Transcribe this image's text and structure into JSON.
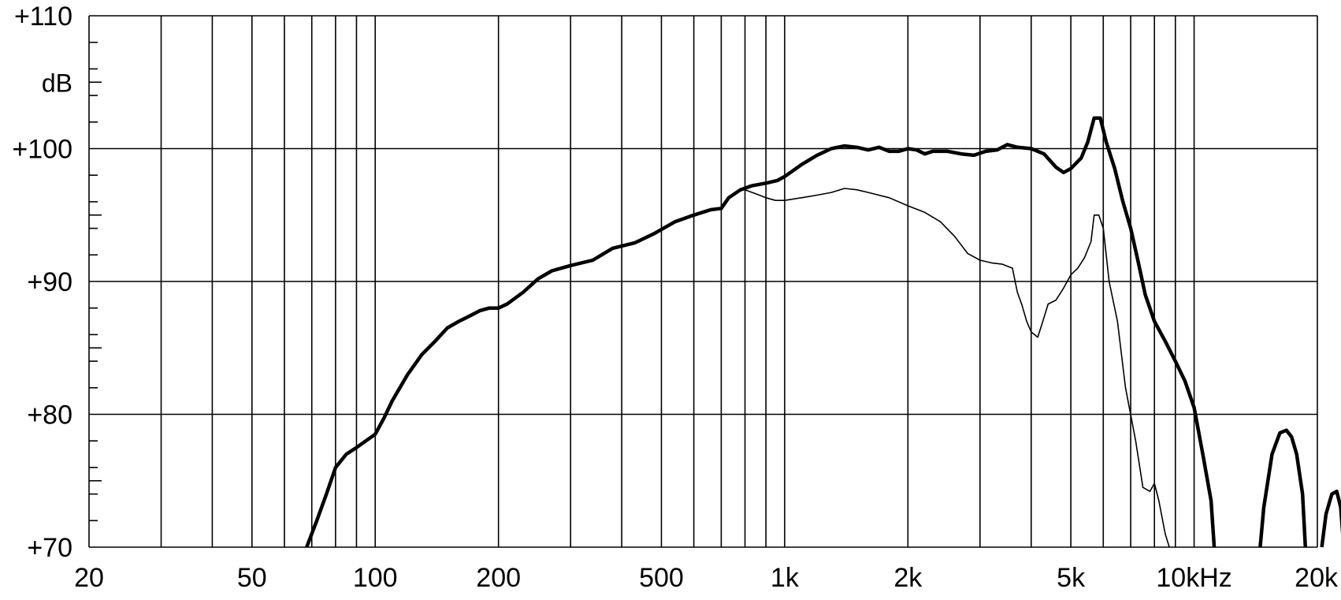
{
  "chart_data": {
    "type": "line",
    "title": "",
    "xlabel": "",
    "ylabel": "dB",
    "x_scale": "log",
    "xlim": [
      20,
      20000
    ],
    "ylim": [
      70,
      110
    ],
    "grid": true,
    "x_ticks": [
      {
        "value": 20,
        "label": "20"
      },
      {
        "value": 50,
        "label": "50"
      },
      {
        "value": 100,
        "label": "100"
      },
      {
        "value": 200,
        "label": "200"
      },
      {
        "value": 500,
        "label": "500"
      },
      {
        "value": 1000,
        "label": "1k"
      },
      {
        "value": 2000,
        "label": "2k"
      },
      {
        "value": 5000,
        "label": "5k"
      },
      {
        "value": 10000,
        "label": "10kHz"
      },
      {
        "value": 20000,
        "label": "20k"
      }
    ],
    "y_ticks": [
      {
        "value": 110,
        "label": "+110"
      },
      {
        "value": 100,
        "label": "+100"
      },
      {
        "value": 90,
        "label": "+90"
      },
      {
        "value": 80,
        "label": "+80"
      },
      {
        "value": 70,
        "label": "+70"
      }
    ],
    "y_unit_label": "dB",
    "y_unit_label_value": 105,
    "series": [
      {
        "style": "thick",
        "color": "#000000",
        "segments": [
          [
            [
              68,
              70
            ],
            [
              72,
              72
            ],
            [
              76,
              74
            ],
            [
              80,
              76
            ],
            [
              85,
              77
            ],
            [
              90,
              77.5
            ],
            [
              100,
              78.5
            ],
            [
              105,
              79.7
            ],
            [
              110,
              81
            ],
            [
              120,
              83
            ],
            [
              130,
              84.5
            ],
            [
              140,
              85.5
            ],
            [
              150,
              86.5
            ],
            [
              160,
              87
            ],
            [
              170,
              87.4
            ],
            [
              180,
              87.8
            ],
            [
              190,
              88
            ],
            [
              200,
              88
            ],
            [
              210,
              88.3
            ],
            [
              230,
              89.2
            ],
            [
              250,
              90.2
            ],
            [
              270,
              90.8
            ],
            [
              300,
              91.2
            ],
            [
              340,
              91.6
            ],
            [
              380,
              92.5
            ],
            [
              430,
              92.9
            ],
            [
              480,
              93.6
            ],
            [
              540,
              94.5
            ],
            [
              600,
              95
            ],
            [
              660,
              95.4
            ],
            [
              700,
              95.5
            ],
            [
              730,
              96.3
            ],
            [
              780,
              96.9
            ],
            [
              830,
              97.2
            ],
            [
              900,
              97.4
            ],
            [
              960,
              97.6
            ],
            [
              1000,
              97.9
            ],
            [
              1100,
              98.8
            ],
            [
              1200,
              99.5
            ],
            [
              1300,
              100
            ],
            [
              1400,
              100.2
            ],
            [
              1500,
              100.1
            ],
            [
              1600,
              99.9
            ],
            [
              1700,
              100.1
            ],
            [
              1800,
              99.8
            ],
            [
              1900,
              99.8
            ],
            [
              2000,
              100
            ],
            [
              2100,
              99.9
            ],
            [
              2200,
              99.6
            ],
            [
              2300,
              99.8
            ],
            [
              2500,
              99.8
            ],
            [
              2700,
              99.6
            ],
            [
              2900,
              99.5
            ],
            [
              3100,
              99.8
            ],
            [
              3300,
              99.9
            ],
            [
              3500,
              100.3
            ],
            [
              3700,
              100.1
            ],
            [
              4000,
              100
            ],
            [
              4300,
              99.6
            ],
            [
              4600,
              98.6
            ],
            [
              4800,
              98.2
            ],
            [
              5000,
              98.5
            ],
            [
              5300,
              99.3
            ],
            [
              5500,
              100.5
            ],
            [
              5700,
              102.3
            ],
            [
              5900,
              102.3
            ],
            [
              6100,
              100.5
            ],
            [
              6400,
              98.5
            ],
            [
              6700,
              96
            ],
            [
              7000,
              94
            ],
            [
              7300,
              91.5
            ],
            [
              7600,
              89
            ],
            [
              8000,
              87
            ],
            [
              8500,
              85.5
            ],
            [
              9000,
              84
            ],
            [
              9500,
              82.5
            ],
            [
              10000,
              80.5
            ],
            [
              10500,
              77
            ],
            [
              11000,
              73.5
            ],
            [
              11200,
              70
            ]
          ],
          [
            [
              14500,
              70
            ],
            [
              14800,
              73
            ],
            [
              15500,
              77
            ],
            [
              16200,
              78.6
            ],
            [
              16800,
              78.8
            ],
            [
              17300,
              78.3
            ],
            [
              17800,
              77
            ],
            [
              18400,
              74
            ],
            [
              18700,
              70
            ]
          ],
          [
            [
              20500,
              70
            ],
            [
              21000,
              72.5
            ],
            [
              21700,
              74
            ],
            [
              22300,
              74.2
            ],
            [
              22800,
              73
            ],
            [
              23200,
              70
            ]
          ]
        ]
      },
      {
        "style": "thin",
        "color": "#000000",
        "segments": [
          [
            [
              800,
              96.9
            ],
            [
              850,
              96.6
            ],
            [
              900,
              96.3
            ],
            [
              950,
              96.1
            ],
            [
              1000,
              96.1
            ],
            [
              1100,
              96.3
            ],
            [
              1200,
              96.5
            ],
            [
              1300,
              96.7
            ],
            [
              1400,
              97
            ],
            [
              1500,
              96.9
            ],
            [
              1600,
              96.7
            ],
            [
              1800,
              96.3
            ],
            [
              2000,
              95.7
            ],
            [
              2200,
              95.2
            ],
            [
              2400,
              94.5
            ],
            [
              2600,
              93.4
            ],
            [
              2800,
              92.1
            ],
            [
              3000,
              91.6
            ],
            [
              3200,
              91.4
            ],
            [
              3400,
              91.3
            ],
            [
              3600,
              91
            ],
            [
              3700,
              89.2
            ],
            [
              3800,
              88.2
            ],
            [
              3900,
              87
            ],
            [
              4000,
              86.2
            ],
            [
              4150,
              85.8
            ],
            [
              4250,
              86.8
            ],
            [
              4400,
              88.3
            ],
            [
              4600,
              88.6
            ],
            [
              4800,
              89.5
            ],
            [
              5000,
              90.5
            ],
            [
              5200,
              91
            ],
            [
              5400,
              91.8
            ],
            [
              5600,
              93
            ],
            [
              5700,
              95
            ],
            [
              5850,
              95
            ],
            [
              6000,
              94
            ],
            [
              6200,
              90
            ],
            [
              6500,
              87
            ],
            [
              6800,
              82
            ],
            [
              7200,
              78
            ],
            [
              7500,
              74.5
            ],
            [
              7800,
              74.2
            ],
            [
              8000,
              74.8
            ],
            [
              8200,
              73.5
            ],
            [
              8500,
              71
            ],
            [
              8700,
              70
            ]
          ]
        ]
      }
    ]
  }
}
